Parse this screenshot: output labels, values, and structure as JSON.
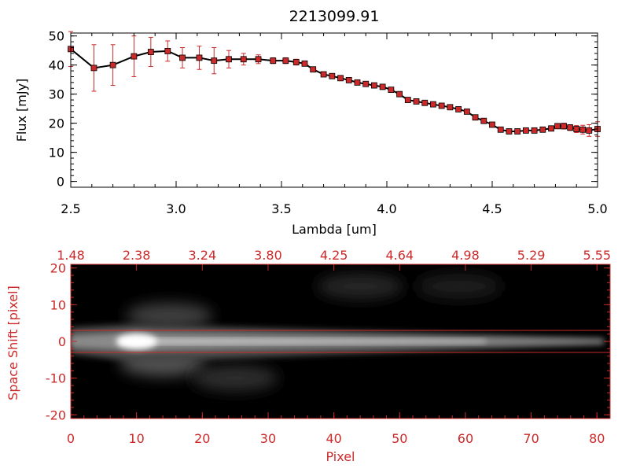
{
  "chart_data": [
    {
      "type": "line",
      "title": "2213099.91",
      "xlabel": "Lambda [um]",
      "ylabel": "Flux [mJy]",
      "xlim": [
        2.5,
        5.0
      ],
      "ylim": [
        -2,
        51
      ],
      "x_ticks": [
        "2.5",
        "3.0",
        "3.5",
        "4.0",
        "4.5",
        "5.0"
      ],
      "y_ticks": [
        "0",
        "10",
        "20",
        "30",
        "40",
        "50"
      ],
      "grid": false,
      "colors": {
        "line": "#000000",
        "marker": "#cc2a2a",
        "error_bar": "#cc2a2a"
      },
      "series": [
        {
          "x": [
            2.5,
            2.61,
            2.7,
            2.8,
            2.88,
            2.96,
            3.03,
            3.11,
            3.18,
            3.25,
            3.32,
            3.39,
            3.46,
            3.52,
            3.57,
            3.61,
            3.65,
            3.7,
            3.74,
            3.78,
            3.82,
            3.86,
            3.9,
            3.94,
            3.98,
            4.02,
            4.06,
            4.1,
            4.14,
            4.18,
            4.22,
            4.26,
            4.3,
            4.34,
            4.38,
            4.42,
            4.46,
            4.5,
            4.54,
            4.58,
            4.62,
            4.66,
            4.7,
            4.74,
            4.78,
            4.81,
            4.84,
            4.87,
            4.9,
            4.93,
            4.96,
            5.0
          ],
          "y": [
            45.5,
            39.0,
            40.0,
            43.0,
            44.5,
            44.8,
            42.5,
            42.5,
            41.5,
            42.0,
            42.0,
            42.0,
            41.5,
            41.5,
            41.0,
            40.5,
            38.5,
            36.8,
            36.2,
            35.5,
            34.8,
            34.0,
            33.5,
            33.0,
            32.5,
            31.5,
            30.0,
            28.0,
            27.5,
            27.0,
            26.5,
            26.0,
            25.5,
            24.8,
            24.0,
            22.0,
            20.8,
            19.5,
            17.8,
            17.2,
            17.2,
            17.5,
            17.5,
            17.8,
            18.2,
            19.0,
            19.0,
            18.5,
            18.0,
            17.8,
            17.5,
            18.0
          ],
          "y_err": [
            6.0,
            8.0,
            7.0,
            7.0,
            5.0,
            3.5,
            3.5,
            4.0,
            4.5,
            3.0,
            2.0,
            1.5,
            1.0,
            1.0,
            1.0,
            0.8,
            0.8,
            0.8,
            0.8,
            0.8,
            0.8,
            0.8,
            0.8,
            0.8,
            0.8,
            0.8,
            0.8,
            0.8,
            0.8,
            0.8,
            0.8,
            0.8,
            0.8,
            0.8,
            0.8,
            0.8,
            0.8,
            0.8,
            0.8,
            0.8,
            0.8,
            0.8,
            0.8,
            0.8,
            0.8,
            0.8,
            1.0,
            1.0,
            1.2,
            1.5,
            2.0,
            2.5
          ]
        }
      ]
    },
    {
      "type": "heatmap",
      "title": "",
      "xlabel": "Pixel",
      "ylabel": "Space Shift [pixel]",
      "xlim": [
        0,
        82
      ],
      "ylim": [
        -21,
        21
      ],
      "x_ticks": [
        "0",
        "10",
        "20",
        "30",
        "40",
        "50",
        "60",
        "70",
        "80"
      ],
      "y_ticks": [
        "-20",
        "-10",
        "0",
        "10",
        "20"
      ],
      "top_axis_ticks": [
        "1.48",
        "2.38",
        "3.24",
        "3.80",
        "4.25",
        "4.64",
        "4.98",
        "5.29",
        "5.55"
      ],
      "extraction_window": [
        -3,
        3
      ],
      "colormap": "grayscale",
      "colors": {
        "axis": "#cc2a2a",
        "window_lines": "#cc2a2a",
        "background": "#000000"
      },
      "trace": {
        "center_row": 0,
        "peak_pixel": 10,
        "peak_intensity": 1.0,
        "extent_pixels": [
          0,
          81
        ]
      },
      "diffuse_regions": [
        {
          "x": 14,
          "y": -6,
          "intensity": 0.32
        },
        {
          "x": 25,
          "y": -10,
          "intensity": 0.18
        },
        {
          "x": 15,
          "y": 7,
          "intensity": 0.25
        },
        {
          "x": 44,
          "y": 15,
          "intensity": 0.15
        },
        {
          "x": 59,
          "y": 15,
          "intensity": 0.12
        }
      ]
    }
  ]
}
